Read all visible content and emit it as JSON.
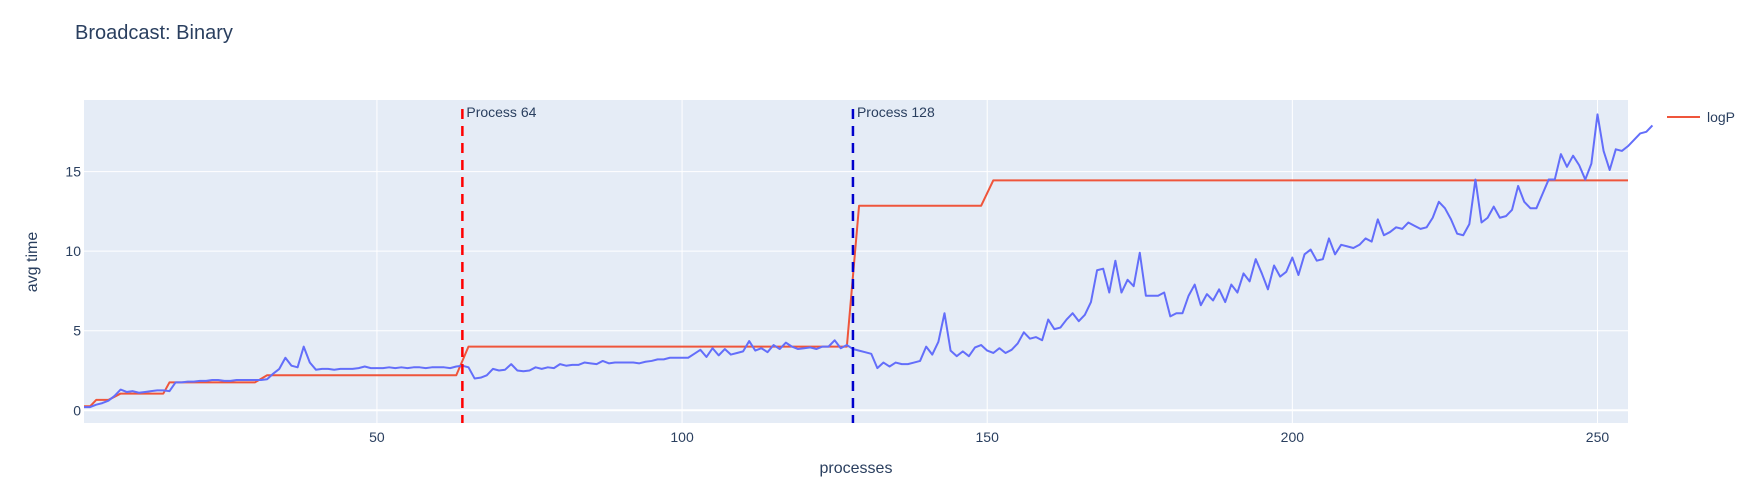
{
  "chart_data": {
    "type": "line",
    "title": "Broadcast: Binary",
    "xlabel": "processes",
    "ylabel": "avg time",
    "xlim": [
      2,
      255
    ],
    "ylim": [
      -0.8,
      19.5
    ],
    "x_ticks": [
      50,
      100,
      150,
      200,
      250
    ],
    "y_ticks": [
      0,
      5,
      10,
      15
    ],
    "grid": true,
    "legend": {
      "position": "top-right",
      "entries": [
        "logP"
      ]
    },
    "colors": {
      "background": "#e5ecf6",
      "grid": "#ffffff",
      "measured": "#636efa",
      "logP": "#ef553b",
      "vline_64": "#ff0000",
      "vline_128": "#0000cc"
    },
    "annotations": [
      {
        "x": 64,
        "label": "Process 64",
        "color": "#ff0000",
        "dash": "dashed"
      },
      {
        "x": 128,
        "label": "Process 128",
        "color": "#0000cc",
        "dash": "dashed"
      }
    ],
    "series": [
      {
        "name": "",
        "color": "#636efa",
        "x_start": 2,
        "values": [
          0.2,
          0.2,
          0.35,
          0.45,
          0.6,
          0.9,
          1.3,
          1.15,
          1.2,
          1.1,
          1.15,
          1.2,
          1.25,
          1.25,
          1.2,
          1.75,
          1.75,
          1.8,
          1.8,
          1.85,
          1.85,
          1.9,
          1.9,
          1.85,
          1.85,
          1.9,
          1.9,
          1.9,
          1.9,
          1.9,
          1.95,
          2.3,
          2.6,
          3.3,
          2.8,
          2.7,
          4.0,
          3.0,
          2.55,
          2.6,
          2.6,
          2.55,
          2.6,
          2.6,
          2.6,
          2.65,
          2.75,
          2.65,
          2.65,
          2.65,
          2.7,
          2.65,
          2.7,
          2.65,
          2.7,
          2.7,
          2.65,
          2.7,
          2.7,
          2.7,
          2.65,
          2.75,
          2.8,
          2.7,
          2.0,
          2.05,
          2.2,
          2.6,
          2.5,
          2.55,
          2.9,
          2.5,
          2.45,
          2.5,
          2.7,
          2.6,
          2.7,
          2.65,
          2.9,
          2.8,
          2.85,
          2.85,
          3.0,
          2.95,
          2.9,
          3.1,
          2.95,
          3.0,
          3.0,
          3.0,
          3.0,
          2.95,
          3.05,
          3.1,
          3.2,
          3.2,
          3.3,
          3.3,
          3.3,
          3.3,
          3.55,
          3.8,
          3.35,
          3.9,
          3.45,
          3.85,
          3.5,
          3.6,
          3.7,
          4.35,
          3.75,
          3.9,
          3.65,
          4.1,
          3.85,
          4.25,
          4.0,
          3.85,
          3.9,
          3.95,
          3.85,
          4.0,
          4.0,
          4.4,
          3.9,
          4.1,
          3.85,
          3.75,
          3.65,
          3.55,
          2.65,
          3.0,
          2.75,
          3.0,
          2.9,
          2.9,
          3.0,
          3.1,
          4.0,
          3.5,
          4.3,
          6.1,
          3.75,
          3.4,
          3.7,
          3.4,
          3.95,
          4.1,
          3.75,
          3.6,
          3.9,
          3.6,
          3.8,
          4.2,
          4.9,
          4.5,
          4.6,
          4.4,
          5.7,
          5.1,
          5.2,
          5.7,
          6.1,
          5.6,
          6.0,
          6.8,
          8.8,
          8.9,
          7.4,
          9.4,
          7.4,
          8.2,
          7.8,
          9.9,
          7.2,
          7.2,
          7.2,
          7.4,
          5.9,
          6.1,
          6.1,
          7.2,
          7.9,
          6.6,
          7.3,
          6.9,
          7.6,
          6.8,
          7.9,
          7.4,
          8.6,
          8.1,
          9.5,
          8.6,
          7.6,
          9.1,
          8.4,
          8.7,
          9.6,
          8.5,
          9.8,
          10.1,
          9.4,
          9.5,
          10.8,
          9.8,
          10.4,
          10.3,
          10.2,
          10.4,
          10.8,
          10.6,
          12.0,
          11.0,
          11.2,
          11.5,
          11.4,
          11.8,
          11.6,
          11.4,
          11.5,
          12.1,
          13.1,
          12.7,
          12.0,
          11.1,
          11.0,
          11.7,
          14.5,
          11.8,
          12.1,
          12.8,
          12.1,
          12.2,
          12.6,
          14.1,
          13.1,
          12.7,
          12.7,
          13.6,
          14.5,
          14.5,
          16.1,
          15.3,
          16.0,
          15.4,
          14.5,
          15.5,
          18.6,
          16.3,
          15.1,
          16.4,
          16.3,
          16.6,
          17.0,
          17.4,
          17.5,
          17.9
        ]
      },
      {
        "name": "logP",
        "color": "#ef553b",
        "steps": [
          {
            "from": 2,
            "to": 3,
            "value": 0.25
          },
          {
            "from": 4,
            "to": 6,
            "value": 0.65
          },
          {
            "from": 8,
            "to": 15,
            "value": 1.05
          },
          {
            "from": 16,
            "to": 30,
            "value": 1.75
          },
          {
            "from": 32,
            "to": 63,
            "value": 2.2
          },
          {
            "from": 65,
            "to": 127,
            "value": 4.0
          },
          {
            "from": 129,
            "to": 149,
            "value": 12.85
          },
          {
            "from": 151,
            "to": 255,
            "value": 14.45
          }
        ]
      }
    ]
  }
}
